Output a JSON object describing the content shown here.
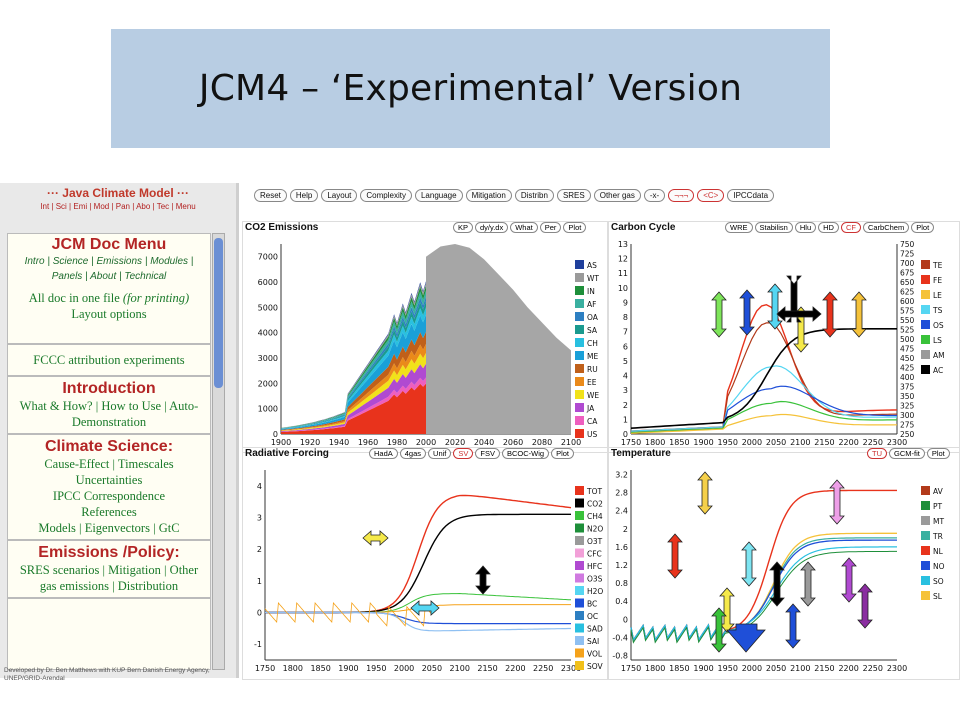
{
  "slide_title": "JCM4 – ‘Experimental’ Version",
  "sidebar": {
    "app_title": "··· Java Climate Model ···",
    "top_links": [
      "Int",
      "Sci",
      "Emi",
      "Mod",
      "Pan",
      "Abo",
      "Tec",
      "Menu"
    ],
    "doc_menu_title": "JCM Doc Menu",
    "doc_menu_links": [
      "Intro",
      "Science",
      "Emissions",
      "Modules",
      "Panels",
      "About",
      "Technical"
    ],
    "all_doc_text": "All doc in one file",
    "all_doc_suffix": "(for printing)",
    "layout_options": "Layout options",
    "fcc_link": "FCCC attribution experiments",
    "sections": [
      {
        "heading": "Introduction",
        "items": [
          "What & How?",
          "How to Use",
          "Auto-Demonstration"
        ]
      },
      {
        "heading": "Climate Science:",
        "items": [
          "Cause-Effect",
          "Timescales",
          "Uncertainties",
          "IPCC Correspondence",
          "References",
          "Models",
          "Eigenvectors",
          "GtC"
        ]
      },
      {
        "heading": "Emissions /Policy:",
        "items": [
          "SRES scenarios",
          "Mitigation",
          "Other gas emissions",
          "Distribution"
        ]
      }
    ],
    "developer_note": "Developed by Dr. Ben Matthews with KUP Bern Danish Energy Agency, UNEP/GRID-Arendal"
  },
  "toolbar": [
    "Reset",
    "Help",
    "Layout",
    "Complexity",
    "Language",
    "Mitigation",
    "Distribn",
    "SRES",
    "Other gas",
    "-x-",
    "¬¬¬",
    "<C>",
    "IPCCdata"
  ],
  "panels": {
    "co2": {
      "title": "CO2 Emissions",
      "buttons": [
        "KP",
        "dy/y.dx",
        "What",
        "Per",
        "Plot"
      ],
      "legend": [
        "AS",
        "WT",
        "IN",
        "AF",
        "OA",
        "SA",
        "CH",
        "ME",
        "RU",
        "EE",
        "WE",
        "JA",
        "CA",
        "US"
      ],
      "legend_colors": [
        "#1f3f9c",
        "#9a9a9a",
        "#1e8f3a",
        "#3ab0a0",
        "#2d7fc2",
        "#1a9a8f",
        "#29c0e0",
        "#1aa0d8",
        "#c0601a",
        "#ea8a1a",
        "#f1e21a",
        "#b04ad1",
        "#ee5fbf",
        "#e8331c"
      ]
    },
    "carbon": {
      "title": "Carbon Cycle",
      "buttons": [
        "WRE",
        "Stabilisn",
        "Hlu",
        "HD",
        "CF",
        "CarbChem",
        "Plot"
      ],
      "legend": [
        "TE",
        "FE",
        "LE",
        "TS",
        "OS",
        "LS",
        "AM",
        "AC"
      ],
      "legend_colors": [
        "#b23a1a",
        "#e8331c",
        "#f5c23a",
        "#55d6f2",
        "#1f4fd8",
        "#39c23a",
        "#9a9a9a",
        "#000000"
      ]
    },
    "forcing": {
      "title": "Radiative Forcing",
      "buttons": [
        "HadA",
        "4gas",
        "Unif",
        "SV",
        "FSV",
        "BCOC-Wig",
        "Plot"
      ],
      "legend": [
        "TOT",
        "CO2",
        "CH4",
        "N2O",
        "O3T",
        "CFC",
        "HFC",
        "O3S",
        "H2O",
        "BC",
        "OC",
        "SAD",
        "SAI",
        "VOL",
        "SOV"
      ],
      "legend_colors": [
        "#e8331c",
        "#000000",
        "#39c23a",
        "#1e8f3a",
        "#9a9a9a",
        "#f2a0d8",
        "#b04ad1",
        "#d07ae0",
        "#55d6f2",
        "#1f4fd8",
        "#2d7fc2",
        "#29c0e0",
        "#8fc0f2",
        "#f5a21a",
        "#f1c01a"
      ]
    },
    "temp": {
      "title": "Temperature",
      "buttons": [
        "TU",
        "GCM-fit",
        "Plot"
      ],
      "legend": [
        "AV",
        "PT",
        "MT",
        "TR",
        "NL",
        "NO",
        "SO",
        "SL"
      ],
      "legend_colors": [
        "#b23a1a",
        "#1e8f3a",
        "#9a9a9a",
        "#3ab0a0",
        "#e8331c",
        "#1f4fd8",
        "#29c0e0",
        "#f5c23a"
      ]
    }
  },
  "chart_data": [
    {
      "type": "area",
      "title": "CO2 Emissions",
      "x_ticks": [
        1900,
        1920,
        1940,
        1960,
        1980,
        2000,
        2020,
        2040,
        2060,
        2080,
        2100
      ],
      "y_ticks": [
        0,
        1000,
        2000,
        3000,
        4000,
        5000,
        6000,
        7000
      ],
      "xlim": [
        1900,
        2100
      ],
      "ylim": [
        0,
        7500
      ],
      "projection": {
        "x": [
          2000,
          2010,
          2020,
          2030,
          2040,
          2050,
          2060,
          2070,
          2080,
          2090,
          2100
        ],
        "values": [
          7000,
          7400,
          7500,
          7350,
          6900,
          6300,
          5700,
          5000,
          4400,
          3800,
          3300
        ]
      }
    },
    {
      "type": "line",
      "title": "Carbon Cycle",
      "x_ticks": [
        1750,
        1800,
        1850,
        1900,
        1950,
        2000,
        2050,
        2100,
        2150,
        2200,
        2250,
        2300
      ],
      "y_ticks_left": [
        0,
        1,
        2,
        3,
        4,
        5,
        6,
        7,
        8,
        9,
        10,
        11,
        12,
        13
      ],
      "y_ticks_right": [
        250,
        275,
        300,
        325,
        350,
        375,
        400,
        425,
        450,
        475,
        500,
        525,
        550,
        575,
        600,
        625,
        650,
        675,
        700,
        725,
        750
      ],
      "xlim": [
        1750,
        2300
      ],
      "ylim": [
        0,
        13
      ]
    },
    {
      "type": "line",
      "title": "Radiative Forcing",
      "x_ticks": [
        1750,
        1800,
        1850,
        1900,
        1950,
        2000,
        2050,
        2100,
        2150,
        2200,
        2250,
        2300
      ],
      "y_ticks": [
        -1,
        0,
        1,
        2,
        3,
        4
      ],
      "xlim": [
        1750,
        2300
      ],
      "ylim": [
        -1.5,
        4.5
      ]
    },
    {
      "type": "line",
      "title": "Temperature",
      "x_ticks": [
        1750,
        1800,
        1850,
        1900,
        1950,
        2000,
        2050,
        2100,
        2150,
        2200,
        2250,
        2300
      ],
      "y_ticks": [
        -0.8,
        -0.4,
        0,
        0.4,
        0.8,
        1.2,
        1.6,
        2,
        2.4,
        2.8,
        3.2
      ],
      "xlim": [
        1750,
        2300
      ],
      "ylim": [
        -0.9,
        3.3
      ]
    }
  ]
}
